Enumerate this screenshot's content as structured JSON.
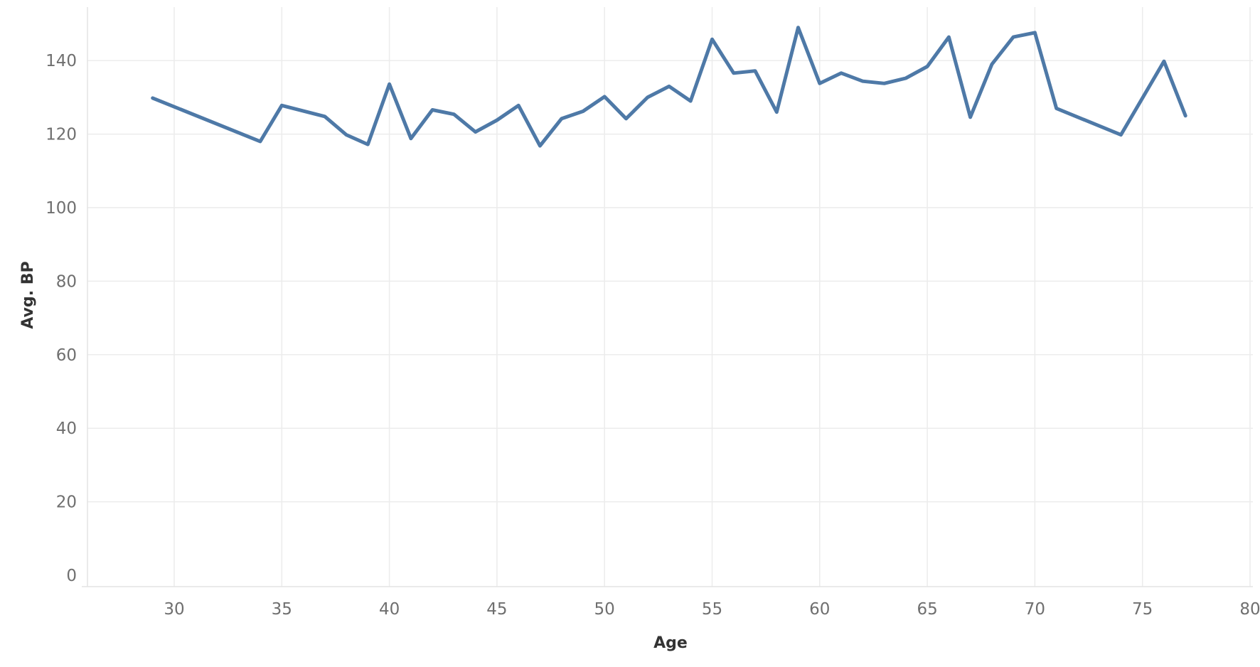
{
  "chart_data": {
    "type": "line",
    "xlabel": "Age",
    "ylabel": "Avg. BP",
    "xlim": [
      25,
      80
    ],
    "ylim": [
      -3,
      152
    ],
    "x_ticks": [
      30,
      35,
      40,
      45,
      50,
      55,
      60,
      65,
      70,
      75,
      80
    ],
    "y_ticks": [
      0,
      20,
      40,
      60,
      80,
      100,
      120,
      140
    ],
    "grid": true,
    "series_color": "#4e79a7",
    "series": [
      {
        "x": [
          29,
          34,
          35,
          37,
          38,
          39,
          40,
          41,
          42,
          43,
          44,
          45,
          46,
          47,
          48,
          49,
          50,
          51,
          52,
          53,
          54,
          55,
          56,
          57,
          58,
          59,
          60,
          61,
          62,
          63,
          64,
          65,
          66,
          67,
          68,
          69,
          70,
          71,
          74,
          76,
          77
        ],
        "values": [
          129.8,
          118,
          127.8,
          124.8,
          119.8,
          117.2,
          133.6,
          118.8,
          126.6,
          125.4,
          120.6,
          123.8,
          127.8,
          116.8,
          124.2,
          126.2,
          130.2,
          124.2,
          130.0,
          133.0,
          129.0,
          145.8,
          136.6,
          137.2,
          126.0,
          149.0,
          133.8,
          136.6,
          134.4,
          133.8,
          135.2,
          138.4,
          146.4,
          124.6,
          139.0,
          146.4,
          147.6,
          127.0,
          119.8,
          139.8,
          125.0
        ]
      }
    ]
  }
}
